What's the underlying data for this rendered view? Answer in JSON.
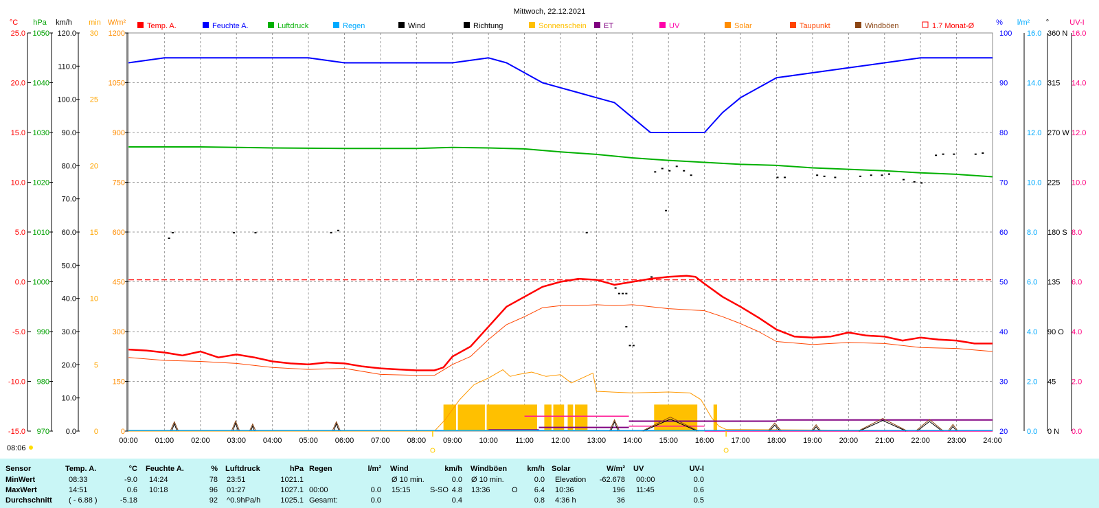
{
  "chart_data": {
    "type": "line",
    "title": "Mittwoch, 22.12.2021",
    "start_time": "08:06",
    "legend": [
      {
        "label": "Temp. A.",
        "color": "#ff0000"
      },
      {
        "label": "Feuchte A.",
        "color": "#0000ff"
      },
      {
        "label": "Luftdruck",
        "color": "#00b000"
      },
      {
        "label": "Regen",
        "color": "#00aaff"
      },
      {
        "label": "Wind",
        "color": "#000000"
      },
      {
        "label": "Richtung",
        "color": "#000000"
      },
      {
        "label": "Sonnenschein",
        "color": "#ffc000"
      },
      {
        "label": "ET",
        "color": "#800080"
      },
      {
        "label": "UV",
        "color": "#ff00aa"
      },
      {
        "label": "Solar",
        "color": "#ff8c00"
      },
      {
        "label": "Taupunkt",
        "color": "#ff4500"
      },
      {
        "label": "Windböen",
        "color": "#8b4513"
      },
      {
        "label": "1.7 Monat-Ø",
        "color": "#ff0000"
      }
    ],
    "x_ticks": [
      "00:00",
      "01:00",
      "02:00",
      "03:00",
      "04:00",
      "05:00",
      "06:00",
      "07:00",
      "08:00",
      "09:00",
      "10:00",
      "11:00",
      "12:00",
      "13:00",
      "14:00",
      "15:00",
      "16:00",
      "17:00",
      "18:00",
      "19:00",
      "20:00",
      "21:00",
      "22:00",
      "23:00",
      "24:00"
    ],
    "left_axes": [
      {
        "unit": "°C",
        "color": "#ff0000",
        "range": [
          -15,
          25
        ],
        "ticks": [
          "25.0",
          "20.0",
          "15.0",
          "10.0",
          "5.0",
          "0.0",
          "-5.0",
          "-10.0",
          "-15.0"
        ]
      },
      {
        "unit": "hPa",
        "color": "#00a000",
        "range": [
          970,
          1050
        ],
        "ticks": [
          "1050",
          "1040",
          "1030",
          "1020",
          "1010",
          "1000",
          "990",
          "980",
          "970"
        ]
      },
      {
        "unit": "km/h",
        "color": "#000000",
        "range": [
          0,
          120
        ],
        "ticks": [
          "120.0",
          "110.0",
          "100.0",
          "90.0",
          "80.0",
          "70.0",
          "60.0",
          "50.0",
          "40.0",
          "30.0",
          "20.0",
          "10.0",
          "0.0"
        ]
      },
      {
        "unit": "min",
        "color": "#ffa500",
        "range": [
          0,
          30
        ],
        "ticks": [
          "30",
          "25",
          "20",
          "15",
          "10",
          "5",
          "0"
        ]
      },
      {
        "unit": "W/m²",
        "color": "#ff8c00",
        "range": [
          0,
          1200
        ],
        "ticks": [
          "1200",
          "1050",
          "900",
          "750",
          "600",
          "450",
          "300",
          "150",
          "0"
        ]
      }
    ],
    "right_axes": [
      {
        "unit": "%",
        "color": "#0000ff",
        "range": [
          20,
          100
        ],
        "ticks": [
          "100",
          "90",
          "80",
          "70",
          "60",
          "50",
          "40",
          "30",
          "20"
        ]
      },
      {
        "unit": "l/m²",
        "color": "#00aaff",
        "range": [
          0,
          16
        ],
        "ticks": [
          "16.0",
          "14.0",
          "12.0",
          "10.0",
          "8.0",
          "6.0",
          "4.0",
          "2.0",
          "0.0"
        ]
      },
      {
        "unit": "°",
        "color": "#000000",
        "range": [
          0,
          360
        ],
        "ticks": [
          "360 N",
          "315",
          "270 W",
          "225",
          "180 S",
          "135",
          "90 O",
          "45",
          "0 N"
        ]
      },
      {
        "unit": "UV-I",
        "color": "#ff0080",
        "range": [
          0,
          16
        ],
        "ticks": [
          "16.0",
          "14.0",
          "12.0",
          "10.0",
          "8.0",
          "6.0",
          "4.0",
          "2.0",
          "0.0"
        ]
      }
    ],
    "series": [
      {
        "name": "Temp. A.",
        "unit": "°C",
        "x": [
          0,
          0.5,
          1,
          1.5,
          2,
          2.5,
          3,
          3.5,
          4,
          4.5,
          5,
          5.5,
          6,
          6.5,
          7,
          7.5,
          8,
          8.5,
          8.75,
          9,
          9.5,
          10,
          10.5,
          11,
          11.5,
          12,
          12.5,
          13,
          13.5,
          14,
          14.5,
          15,
          15.5,
          15.75,
          16,
          16.5,
          17,
          17.5,
          18,
          18.5,
          19,
          19.5,
          20,
          20.5,
          21,
          21.5,
          22,
          22.5,
          23,
          23.5,
          24
        ],
        "y": [
          -6.8,
          -6.9,
          -7.1,
          -7.4,
          -7.0,
          -7.6,
          -7.3,
          -7.6,
          -8.0,
          -8.2,
          -8.3,
          -8.1,
          -8.2,
          -8.5,
          -8.7,
          -8.8,
          -8.9,
          -8.9,
          -8.6,
          -7.5,
          -6.5,
          -4.5,
          -2.5,
          -1.5,
          -0.5,
          0.0,
          0.3,
          0.2,
          -0.3,
          0.0,
          0.3,
          0.5,
          0.6,
          0.5,
          -0.2,
          -1.5,
          -2.5,
          -3.6,
          -4.8,
          -5.5,
          -5.6,
          -5.5,
          -5.1,
          -5.4,
          -5.5,
          -5.9,
          -5.6,
          -5.8,
          -5.9,
          -6.2,
          -6.2
        ]
      },
      {
        "name": "Feuchte A.",
        "unit": "%",
        "x": [
          0,
          1,
          2,
          3,
          4,
          5,
          6,
          7,
          8,
          9,
          10,
          10.5,
          11,
          11.5,
          12,
          12.5,
          13,
          13.5,
          14,
          14.5,
          15,
          15.5,
          16,
          16.5,
          17,
          17.5,
          18,
          19,
          20,
          21,
          22,
          23,
          24
        ],
        "y": [
          94,
          95,
          95,
          95,
          95,
          95,
          94,
          94,
          94,
          94,
          95,
          94,
          92,
          90,
          89,
          88,
          87,
          86,
          83,
          80,
          80,
          80,
          80,
          84,
          87,
          89,
          91,
          92,
          93,
          94,
          95,
          95,
          95
        ]
      },
      {
        "name": "Luftdruck",
        "unit": "hPa",
        "x": [
          0,
          2,
          4,
          6,
          8,
          9,
          10,
          11,
          12,
          13,
          14,
          15,
          16,
          17,
          18,
          19,
          20,
          21,
          22,
          23,
          24
        ],
        "y": [
          1027.1,
          1027.1,
          1026.9,
          1026.8,
          1026.8,
          1027.0,
          1026.9,
          1026.7,
          1026.1,
          1025.6,
          1024.9,
          1024.4,
          1024.0,
          1023.6,
          1023.4,
          1022.9,
          1022.6,
          1022.3,
          1021.9,
          1021.6,
          1021.1
        ]
      },
      {
        "name": "Taupunkt",
        "unit": "°C",
        "x": [
          0,
          1,
          2,
          3,
          4,
          5,
          6,
          7,
          8,
          8.5,
          9,
          9.5,
          10,
          10.5,
          11,
          11.5,
          12,
          12.5,
          13,
          13.5,
          14,
          15,
          16,
          16.5,
          17,
          17.5,
          18,
          19,
          20,
          21,
          22,
          23,
          24
        ],
        "y": [
          -7.6,
          -7.9,
          -8.0,
          -8.2,
          -8.6,
          -8.8,
          -8.7,
          -9.3,
          -9.4,
          -9.4,
          -8.3,
          -7.5,
          -5.8,
          -4.3,
          -3.5,
          -2.6,
          -2.4,
          -2.4,
          -2.3,
          -2.4,
          -2.3,
          -2.7,
          -2.9,
          -3.5,
          -4.2,
          -5.0,
          -6.0,
          -6.3,
          -6.1,
          -6.2,
          -6.6,
          -6.7,
          -7.0
        ]
      },
      {
        "name": "Solar",
        "unit": "W/m²",
        "x": [
          0,
          8.5,
          8.8,
          9.2,
          9.6,
          10.0,
          10.4,
          10.6,
          10.8,
          11.2,
          11.6,
          12.0,
          12.3,
          12.6,
          12.9,
          13.0,
          14.0,
          15.0,
          15.6,
          15.9,
          16.2,
          16.4,
          16.6,
          24
        ],
        "y": [
          0,
          0,
          35,
          95,
          140,
          160,
          185,
          165,
          170,
          178,
          165,
          170,
          145,
          160,
          175,
          120,
          115,
          118,
          115,
          95,
          40,
          15,
          5,
          0
        ]
      },
      {
        "name": "1.7 Monat-Ø",
        "unit": "°C",
        "x": [
          0,
          24
        ],
        "y": [
          0.2,
          0.2
        ]
      }
    ],
    "sunshine_blocks_h": [
      [
        8.75,
        9.1
      ],
      [
        9.15,
        9.9
      ],
      [
        9.95,
        11.35
      ],
      [
        11.55,
        11.75
      ],
      [
        11.8,
        12.1
      ],
      [
        12.2,
        12.35
      ],
      [
        12.4,
        12.75
      ],
      [
        14.6,
        15.8
      ],
      [
        16.25,
        16.35
      ]
    ],
    "wind_events": [
      [
        1.2,
        1.35,
        2.2
      ],
      [
        2.9,
        3.05,
        2.4
      ],
      [
        3.4,
        3.5,
        1.5
      ],
      [
        5.7,
        5.85,
        2.2
      ],
      [
        13.4,
        13.6,
        2.8
      ],
      [
        14.3,
        15.8,
        3.6
      ],
      [
        17.8,
        18.1,
        1.8
      ],
      [
        19.0,
        19.2,
        1.3
      ],
      [
        20.3,
        21.6,
        3.2
      ],
      [
        21.9,
        22.6,
        2.9
      ],
      [
        22.8,
        23.0,
        1.4
      ]
    ],
    "uv_steps_h": [
      [
        11.0,
        13.9,
        0.6
      ],
      [
        13.9,
        16.0,
        0.2
      ],
      [
        16.0,
        24,
        0.0
      ]
    ],
    "et_steps_h": [
      [
        10.0,
        11.4,
        0.05
      ],
      [
        11.4,
        13.9,
        0.15
      ],
      [
        13.9,
        18.0,
        0.4
      ],
      [
        18.0,
        24,
        0.45
      ]
    ],
    "direction_dots": [
      [
        1.1,
        175
      ],
      [
        1.2,
        180
      ],
      [
        2.9,
        180
      ],
      [
        3.5,
        180
      ],
      [
        5.6,
        180
      ],
      [
        5.8,
        182
      ],
      [
        12.7,
        180
      ],
      [
        13.5,
        130
      ],
      [
        13.6,
        125
      ],
      [
        13.7,
        125
      ],
      [
        13.8,
        125
      ],
      [
        14.6,
        235
      ],
      [
        14.8,
        238
      ],
      [
        15.0,
        236
      ],
      [
        15.2,
        240
      ],
      [
        15.4,
        236
      ],
      [
        15.6,
        232
      ],
      [
        13.8,
        95
      ],
      [
        13.9,
        78
      ],
      [
        14.0,
        78
      ],
      [
        14.5,
        140
      ],
      [
        14.9,
        200
      ],
      [
        18.0,
        230
      ],
      [
        18.2,
        230
      ],
      [
        19.1,
        232
      ],
      [
        19.3,
        231
      ],
      [
        19.6,
        230
      ],
      [
        20.3,
        231
      ],
      [
        20.6,
        232
      ],
      [
        20.9,
        232
      ],
      [
        21.1,
        233
      ],
      [
        21.5,
        228
      ],
      [
        21.8,
        226
      ],
      [
        22.0,
        225
      ],
      [
        22.4,
        250
      ],
      [
        22.6,
        251
      ],
      [
        22.9,
        251
      ],
      [
        23.5,
        251
      ],
      [
        23.7,
        252
      ]
    ]
  },
  "stats": {
    "headers": [
      "Sensor",
      "Temp. A.",
      "°C",
      "Feuchte A.",
      "%",
      "Luftdruck",
      "hPa",
      "Regen",
      "l/m²",
      "Wind",
      "km/h",
      "Windböen",
      "km/h",
      "Solar",
      "W/m²",
      "UV",
      "UV-I"
    ],
    "rows": [
      {
        "label": "MinWert",
        "temp_time": "08:33",
        "temp_val": "-9.0",
        "hum_time": "14:24",
        "hum_val": "78",
        "press_time": "23:51",
        "press_val": "1021.1",
        "rain_time": "",
        "rain_val": "",
        "wind_time": "Ø 10 min.",
        "wind_dir": "",
        "wind_val": "0.0",
        "gust_time": "Ø 10 min.",
        "gust_dir": "",
        "gust_val": "0.0",
        "solar_label": "Elevation",
        "solar_val": "-62.678",
        "uv_time": "00:00",
        "uv_val": "0.0"
      },
      {
        "label": "MaxWert",
        "temp_time": "14:51",
        "temp_val": "0.6",
        "hum_time": "10:18",
        "hum_val": "96",
        "press_time": "01:27",
        "press_val": "1027.1",
        "rain_time": "00:00",
        "rain_val": "0.0",
        "wind_time": "15:15",
        "wind_dir": "S-SO",
        "wind_val": "4.8",
        "gust_time": "13:36",
        "gust_dir": "O",
        "gust_val": "6.4",
        "solar_label": "10:36",
        "solar_val": "196",
        "uv_time": "11:45",
        "uv_val": "0.6"
      },
      {
        "label": "Durchschnitt",
        "temp_time": "( - 6.88 )",
        "temp_val": "-5.18",
        "hum_time": "",
        "hum_val": "92",
        "press_time": "^0.9hPa/h",
        "press_val": "1025.1",
        "rain_time": "Gesamt:",
        "rain_val": "0.0",
        "wind_time": "",
        "wind_dir": "",
        "wind_val": "0.4",
        "gust_time": "",
        "gust_dir": "",
        "gust_val": "0.8",
        "solar_label": "4:36 h",
        "solar_val": "36",
        "uv_time": "",
        "uv_val": "0.5"
      }
    ]
  }
}
